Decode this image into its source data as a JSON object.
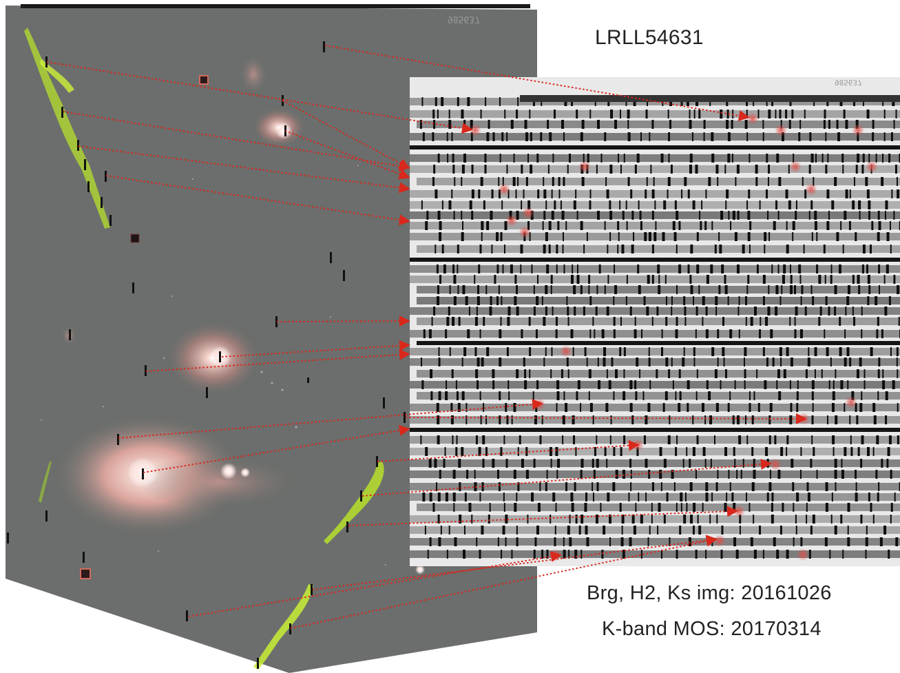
{
  "target_name": "LRLL54631",
  "imaging_caption": "Brg, H2, Ks img: 20161026",
  "spectroscopy_caption": "K-band MOS: 20170314",
  "plate_stamp": "985637",
  "colors": {
    "background": "#ffffff",
    "sky": "#6b6e6c",
    "nebula_red": "#e8b0a8",
    "h2_green": "#b6e02c",
    "arrow_red": "#d9281c",
    "slit_dark": "#111111"
  }
}
